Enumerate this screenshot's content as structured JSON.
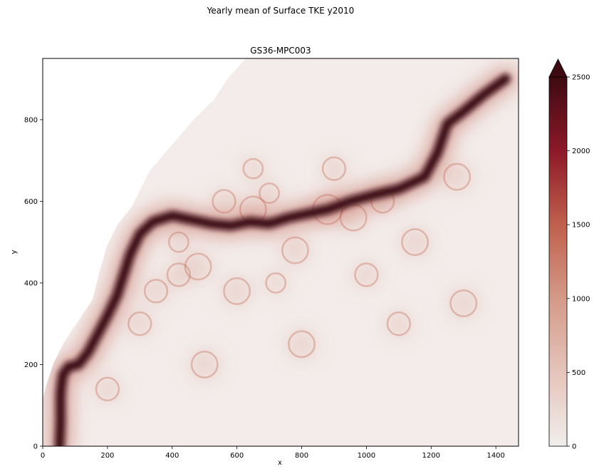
{
  "figure": {
    "suptitle": "Yearly mean of Surface TKE y2010",
    "axes_title": "GS36-MPC003"
  },
  "chart_data": {
    "type": "heatmap",
    "title": "GS36-MPC003",
    "xlabel": "x",
    "ylabel": "y",
    "xlim": [
      0,
      1470
    ],
    "ylim": [
      0,
      950
    ],
    "x_ticks": [
      "0",
      "200",
      "400",
      "600",
      "800",
      "1000",
      "1200",
      "1400"
    ],
    "y_ticks": [
      "0",
      "200",
      "400",
      "600",
      "800"
    ],
    "x_tick_values": [
      0,
      200,
      400,
      600,
      800,
      1000,
      1200,
      1400
    ],
    "y_tick_values": [
      0,
      200,
      400,
      600,
      800
    ],
    "colorbar": {
      "range": [
        0,
        2500
      ],
      "extend": "max",
      "ticks": [
        "0",
        "500",
        "1000",
        "1500",
        "2000",
        "2500"
      ],
      "tick_values": [
        0,
        500,
        1000,
        1500,
        2000,
        2500
      ],
      "colormap": [
        "#f1eeec",
        "#e5c4bb",
        "#d49a88",
        "#c0604d",
        "#8c1928",
        "#3d0a12"
      ]
    },
    "gulf_stream_path": [
      [
        52,
        0
      ],
      [
        55,
        60
      ],
      [
        55,
        130
      ],
      [
        62,
        175
      ],
      [
        80,
        195
      ],
      [
        110,
        200
      ],
      [
        140,
        230
      ],
      [
        170,
        275
      ],
      [
        200,
        320
      ],
      [
        230,
        370
      ],
      [
        250,
        420
      ],
      [
        270,
        470
      ],
      [
        300,
        520
      ],
      [
        340,
        550
      ],
      [
        400,
        565
      ],
      [
        460,
        555
      ],
      [
        520,
        545
      ],
      [
        580,
        540
      ],
      [
        640,
        550
      ],
      [
        700,
        545
      ],
      [
        760,
        560
      ],
      [
        820,
        570
      ],
      [
        880,
        580
      ],
      [
        950,
        600
      ],
      [
        1020,
        615
      ],
      [
        1100,
        630
      ],
      [
        1180,
        660
      ],
      [
        1220,
        720
      ],
      [
        1250,
        790
      ],
      [
        1300,
        820
      ],
      [
        1360,
        860
      ],
      [
        1430,
        900
      ]
    ],
    "eddies": [
      [
        420,
        420,
        35
      ],
      [
        650,
        580,
        40
      ],
      [
        700,
        620,
        30
      ],
      [
        560,
        600,
        35
      ],
      [
        880,
        580,
        45
      ],
      [
        960,
        560,
        40
      ],
      [
        1050,
        600,
        35
      ],
      [
        350,
        380,
        35
      ],
      [
        480,
        440,
        40
      ],
      [
        780,
        480,
        40
      ],
      [
        1150,
        500,
        40
      ],
      [
        1280,
        660,
        40
      ],
      [
        900,
        680,
        35
      ],
      [
        300,
        300,
        35
      ],
      [
        600,
        380,
        40
      ],
      [
        720,
        400,
        30
      ],
      [
        1000,
        420,
        35
      ],
      [
        200,
        140,
        35
      ],
      [
        500,
        200,
        40
      ],
      [
        800,
        250,
        40
      ],
      [
        1300,
        350,
        40
      ],
      [
        1100,
        300,
        35
      ],
      [
        650,
        680,
        30
      ],
      [
        420,
        500,
        30
      ]
    ]
  }
}
